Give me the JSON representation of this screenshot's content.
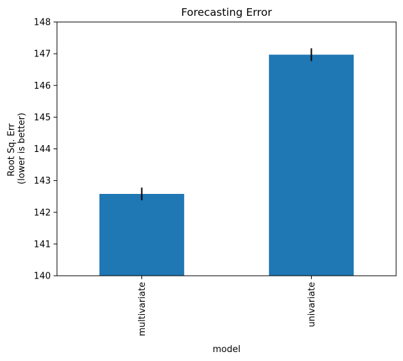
{
  "chart_data": {
    "type": "bar",
    "title": "Forecasting Error",
    "xlabel": "model",
    "ylabel_lines": [
      "Root Sq. Err",
      "(lower is better)"
    ],
    "categories": [
      "multivariate",
      "univariate"
    ],
    "values": [
      142.58,
      146.97
    ],
    "error": [
      0.2,
      0.2
    ],
    "ylim": [
      140,
      148
    ],
    "yticks": [
      "140",
      "141",
      "142",
      "143",
      "144",
      "145",
      "146",
      "147",
      "148"
    ],
    "bar_color": "#1f77b4",
    "error_color": "#000000",
    "grid": false,
    "legend": "none"
  }
}
